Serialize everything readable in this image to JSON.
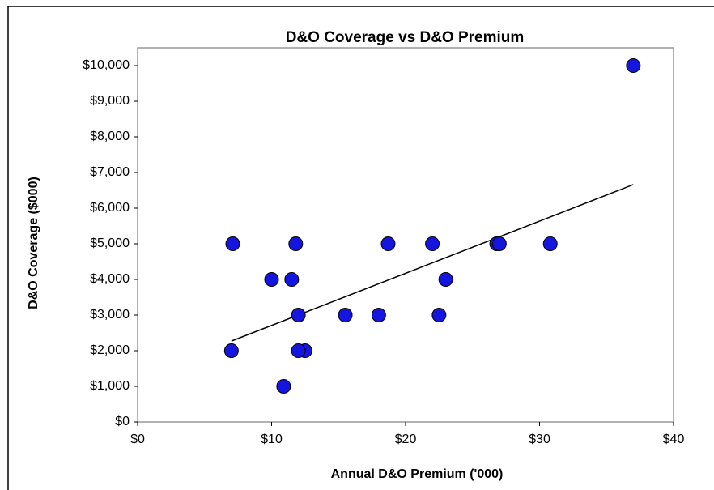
{
  "chart_data": {
    "type": "scatter",
    "title": "D&O Coverage vs D&O Premium",
    "x_label": "Annual D&O Premium ('000)",
    "y_label": "D&O Coverage ($000)",
    "x": [
      7.1,
      7.0,
      10.0,
      11.5,
      11.8,
      10.9,
      12.5,
      12.0,
      12.0,
      15.5,
      18.7,
      18.0,
      22.0,
      23.0,
      22.5,
      26.8,
      27.0,
      30.8,
      37.0
    ],
    "values": [
      5000,
      2000,
      4000,
      4000,
      5000,
      1000,
      2000,
      3000,
      2000,
      3000,
      5000,
      3000,
      5000,
      4000,
      3000,
      5000,
      5000,
      5000,
      10000
    ],
    "color": "#1515e0",
    "trendline": {
      "x": [
        7.0,
        37.0
      ],
      "y": [
        2270,
        6660
      ]
    },
    "xlim": [
      0,
      40
    ],
    "xticks": [
      {
        "value": 0,
        "label": "$0"
      },
      {
        "value": 10,
        "label": "$10"
      },
      {
        "value": 20,
        "label": "$20"
      },
      {
        "value": 30,
        "label": "$30"
      },
      {
        "value": 40,
        "label": "$40"
      }
    ],
    "ylim": [
      0,
      10000
    ],
    "yticks": [
      {
        "value": 0,
        "label": "$0"
      },
      {
        "value": 1000,
        "label": "$1,000"
      },
      {
        "value": 2000,
        "label": "$2,000"
      },
      {
        "value": 3000,
        "label": "$3,000"
      },
      {
        "value": 4000,
        "label": "$4,000"
      },
      {
        "value": 5000,
        "label": "$5,000"
      },
      {
        "value": 6000,
        "label": "$6,000"
      },
      {
        "value": 7000,
        "label": "$7,000"
      },
      {
        "value": 8000,
        "label": "$8,000"
      },
      {
        "value": 9000,
        "label": "$9,000"
      },
      {
        "value": 10000,
        "label": "$10,000"
      }
    ]
  }
}
